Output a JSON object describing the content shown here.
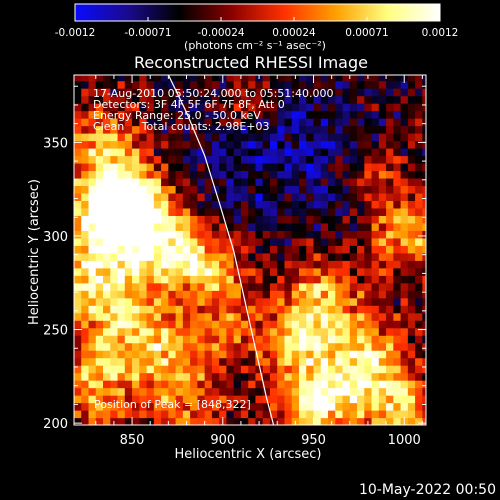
{
  "chart_data": {
    "type": "heatmap",
    "title": "Reconstructed RHESSI Image",
    "xlabel": "Heliocentric X (arcsec)",
    "ylabel": "Heliocentric Y (arcsec)",
    "xlim": [
      818,
      1012
    ],
    "ylim": [
      199,
      386
    ],
    "xticks": [
      850,
      900,
      950,
      1000
    ],
    "yticks": [
      200,
      250,
      300,
      350
    ],
    "info_lines": [
      "17-Aug-2010 05:50:24.000 to 05:51:40.000",
      "Detectors: 3F 4F 5F 6F 7F 8F, Att 0",
      "Energy Range: 25.0 - 50.0 keV",
      "Clean     Total counts: 2.98E+03"
    ],
    "peak_label": "Position of Peak = [848,322]",
    "peak": [
      848,
      322
    ],
    "colorbar": {
      "ticks": [
        "-0.0012",
        "-0.00071",
        "-0.00024",
        "0.00024",
        "0.00071",
        "0.0012"
      ],
      "range": [
        -0.0012,
        0.0012
      ],
      "unit": "(photons cm⁻² s⁻¹ asec⁻²)",
      "stops": [
        "#0a0aff",
        "#1a0a90",
        "#000000",
        "#8a0000",
        "#ff3000",
        "#ffa000",
        "#ffff80",
        "#ffffff"
      ]
    },
    "limb_curve": [
      [
        870,
        386
      ],
      [
        880,
        366
      ],
      [
        890,
        343
      ],
      [
        898,
        318
      ],
      [
        906,
        292
      ],
      [
        912,
        266
      ],
      [
        918,
        240
      ],
      [
        924,
        214
      ],
      [
        928,
        199
      ]
    ],
    "blobs": [
      {
        "x": 847,
        "y": 318,
        "amp": 1.7,
        "r": 14
      },
      {
        "x": 832,
        "y": 308,
        "amp": 1.0,
        "r": 18
      },
      {
        "x": 835,
        "y": 348,
        "amp": 0.9,
        "r": 14
      },
      {
        "x": 858,
        "y": 290,
        "amp": 0.9,
        "r": 16
      },
      {
        "x": 825,
        "y": 275,
        "amp": 0.9,
        "r": 14
      },
      {
        "x": 892,
        "y": 282,
        "amp": 1.0,
        "r": 13
      },
      {
        "x": 875,
        "y": 300,
        "amp": 0.7,
        "r": 12
      },
      {
        "x": 845,
        "y": 250,
        "amp": 0.9,
        "r": 16
      },
      {
        "x": 870,
        "y": 240,
        "amp": 0.8,
        "r": 14
      },
      {
        "x": 830,
        "y": 220,
        "amp": 0.9,
        "r": 14
      },
      {
        "x": 880,
        "y": 210,
        "amp": 0.7,
        "r": 14
      },
      {
        "x": 905,
        "y": 250,
        "amp": 0.6,
        "r": 12
      },
      {
        "x": 955,
        "y": 265,
        "amp": 1.0,
        "r": 16
      },
      {
        "x": 940,
        "y": 240,
        "amp": 0.8,
        "r": 14
      },
      {
        "x": 980,
        "y": 230,
        "amp": 1.1,
        "r": 16
      },
      {
        "x": 960,
        "y": 215,
        "amp": 0.9,
        "r": 14
      },
      {
        "x": 1000,
        "y": 205,
        "amp": 0.9,
        "r": 12
      },
      {
        "x": 1000,
        "y": 305,
        "amp": 1.0,
        "r": 14
      },
      {
        "x": 985,
        "y": 335,
        "amp": 0.6,
        "r": 10
      },
      {
        "x": 945,
        "y": 205,
        "amp": 0.7,
        "r": 12
      },
      {
        "x": 915,
        "y": 372,
        "amp": 0.5,
        "r": 10
      }
    ]
  },
  "footer": {
    "timestamp": "10-May-2022 00:50"
  }
}
